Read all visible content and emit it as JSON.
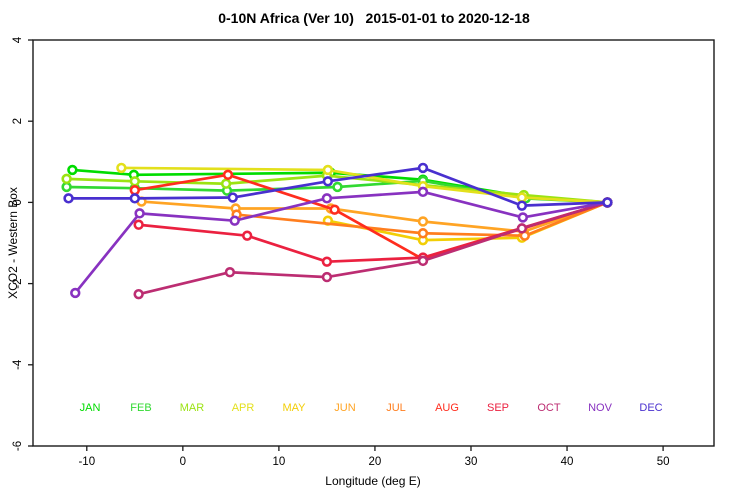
{
  "title": "0-10N Africa (Ver 10)   2015-01-01 to 2020-12-18",
  "chart_data": {
    "type": "line",
    "title": "0-10N Africa (Ver 10)   2015-01-01 to 2020-12-18",
    "xlabel": "Longitude (deg E)",
    "ylabel": "XCO2 - Western Box",
    "xlim": [
      -15.6,
      55.3
    ],
    "ylim": [
      -6,
      4
    ],
    "x_ticks": [
      -10,
      0,
      10,
      20,
      30,
      40,
      50
    ],
    "y_ticks": [
      -6,
      -4,
      -2,
      0,
      2,
      4
    ],
    "grid": false,
    "legend_position": "inside-bottom",
    "point_style": "open-circle",
    "series": [
      {
        "name": "JAN",
        "color": "#00DC00",
        "points": [
          [
            -11.5,
            0.8
          ],
          [
            -5.1,
            0.68
          ],
          [
            15.4,
            0.73
          ],
          [
            25.0,
            0.56
          ],
          [
            35.4,
            0.15
          ],
          [
            44.2,
            0.0
          ]
        ]
      },
      {
        "name": "FEB",
        "color": "#32D932",
        "points": [
          [
            -12.1,
            0.38
          ],
          [
            -5.0,
            0.35
          ],
          [
            4.6,
            0.29
          ],
          [
            16.1,
            0.38
          ],
          [
            25.0,
            0.53
          ],
          [
            35.7,
            0.1
          ],
          [
            44.2,
            0.0
          ]
        ]
      },
      {
        "name": "MAR",
        "color": "#9BE312",
        "points": [
          [
            -12.1,
            0.58
          ],
          [
            -5.0,
            0.52
          ],
          [
            4.5,
            0.46
          ],
          [
            15.0,
            0.66
          ],
          [
            35.5,
            0.18
          ],
          [
            44.2,
            0.0
          ]
        ]
      },
      {
        "name": "APR",
        "color": "#E3E01C",
        "points": [
          [
            -6.4,
            0.85
          ],
          [
            15.1,
            0.8
          ],
          [
            25.0,
            0.4
          ],
          [
            35.3,
            0.12
          ],
          [
            44.2,
            0.0
          ]
        ]
      },
      {
        "name": "MAY",
        "color": "#F2CE06",
        "points": [
          [
            15.1,
            -0.45
          ],
          [
            25.0,
            -0.93
          ],
          [
            35.3,
            -0.87
          ],
          [
            44.2,
            0.0
          ]
        ]
      },
      {
        "name": "JUN",
        "color": "#FFA424",
        "points": [
          [
            -4.3,
            0.02
          ],
          [
            5.5,
            -0.15
          ],
          [
            15.4,
            -0.15
          ],
          [
            25.0,
            -0.47
          ],
          [
            35.5,
            -0.72
          ],
          [
            44.2,
            0.0
          ]
        ]
      },
      {
        "name": "JUL",
        "color": "#FF7E1E",
        "points": [
          [
            5.6,
            -0.3
          ],
          [
            25.0,
            -0.76
          ],
          [
            35.6,
            -0.82
          ],
          [
            44.2,
            0.0
          ]
        ]
      },
      {
        "name": "AUG",
        "color": "#FF2D1E",
        "points": [
          [
            -5.0,
            0.3
          ],
          [
            4.7,
            0.68
          ],
          [
            15.8,
            -0.18
          ],
          [
            25.0,
            -1.4
          ],
          [
            44.2,
            0.0
          ]
        ]
      },
      {
        "name": "SEP",
        "color": "#EB2140",
        "points": [
          [
            -4.6,
            -0.55
          ],
          [
            6.7,
            -0.82
          ],
          [
            15.0,
            -1.46
          ],
          [
            25.0,
            -1.36
          ],
          [
            44.2,
            0.0
          ]
        ]
      },
      {
        "name": "OCT",
        "color": "#BC2D72",
        "points": [
          [
            -4.6,
            -2.26
          ],
          [
            4.9,
            -1.72
          ],
          [
            15.0,
            -1.84
          ],
          [
            25.0,
            -1.44
          ],
          [
            35.3,
            -0.64
          ],
          [
            44.2,
            0.0
          ]
        ]
      },
      {
        "name": "NOV",
        "color": "#8832C0",
        "points": [
          [
            -11.2,
            -2.23
          ],
          [
            -4.5,
            -0.27
          ],
          [
            5.4,
            -0.45
          ],
          [
            15.0,
            0.1
          ],
          [
            25.0,
            0.26
          ],
          [
            35.4,
            -0.37
          ],
          [
            44.2,
            0.0
          ]
        ]
      },
      {
        "name": "DEC",
        "color": "#4930CF",
        "points": [
          [
            -11.9,
            0.1
          ],
          [
            -5.0,
            0.1
          ],
          [
            5.2,
            0.12
          ],
          [
            15.1,
            0.52
          ],
          [
            25.0,
            0.85
          ],
          [
            35.3,
            -0.08
          ],
          [
            44.2,
            0.0
          ]
        ]
      }
    ]
  }
}
